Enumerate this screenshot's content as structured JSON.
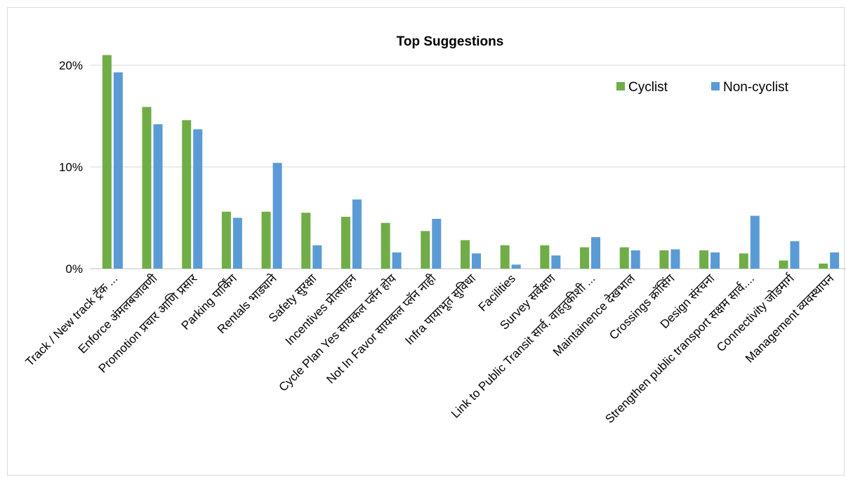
{
  "chart_data": {
    "type": "bar",
    "title": "Top Suggestions",
    "xlabel": "",
    "ylabel": "",
    "ylim": [
      0,
      0.22
    ],
    "yticks": [
      0,
      0.1,
      0.2
    ],
    "ytick_labels": [
      "0%",
      "10%",
      "20%"
    ],
    "grid": true,
    "legend_position": "top-right",
    "categories": [
      "Track / New track ट्रॅक ...",
      "Enforce अंमलबजावणी",
      "Promotion प्रचार आणि प्रसार",
      "Parking पार्किंग",
      "Rentals भाड्याने",
      "Safety सुरक्षा",
      "Incentives प्रोत्साहन",
      "Cycle Plan Yes सायकल प्लॅन होय",
      "Not In Favor सायकल प्लॅन नाही",
      "Infra पायाभूत सुविधा",
      "Facilities",
      "Survey सर्वेक्षण",
      "Link to Public Transit सार्व. वाहतुकीशी ...",
      "Maintainence देखभाल",
      "Crossings क्रॉसिंग",
      "Design संरचना",
      "Strengthen public transport सक्षम सार्व....",
      "Connectivity जोडमार्ग",
      "Management व्यवस्थापन"
    ],
    "series": [
      {
        "name": "Cyclist",
        "color": "#70ad47",
        "values": [
          0.21,
          0.159,
          0.146,
          0.056,
          0.056,
          0.055,
          0.051,
          0.045,
          0.037,
          0.028,
          0.023,
          0.023,
          0.021,
          0.021,
          0.018,
          0.018,
          0.015,
          0.008,
          0.005
        ]
      },
      {
        "name": "Non-cyclist",
        "color": "#5b9bd5",
        "values": [
          0.193,
          0.142,
          0.137,
          0.05,
          0.104,
          0.023,
          0.068,
          0.016,
          0.049,
          0.015,
          0.004,
          0.013,
          0.031,
          0.018,
          0.019,
          0.016,
          0.052,
          0.027,
          0.016
        ]
      }
    ]
  }
}
